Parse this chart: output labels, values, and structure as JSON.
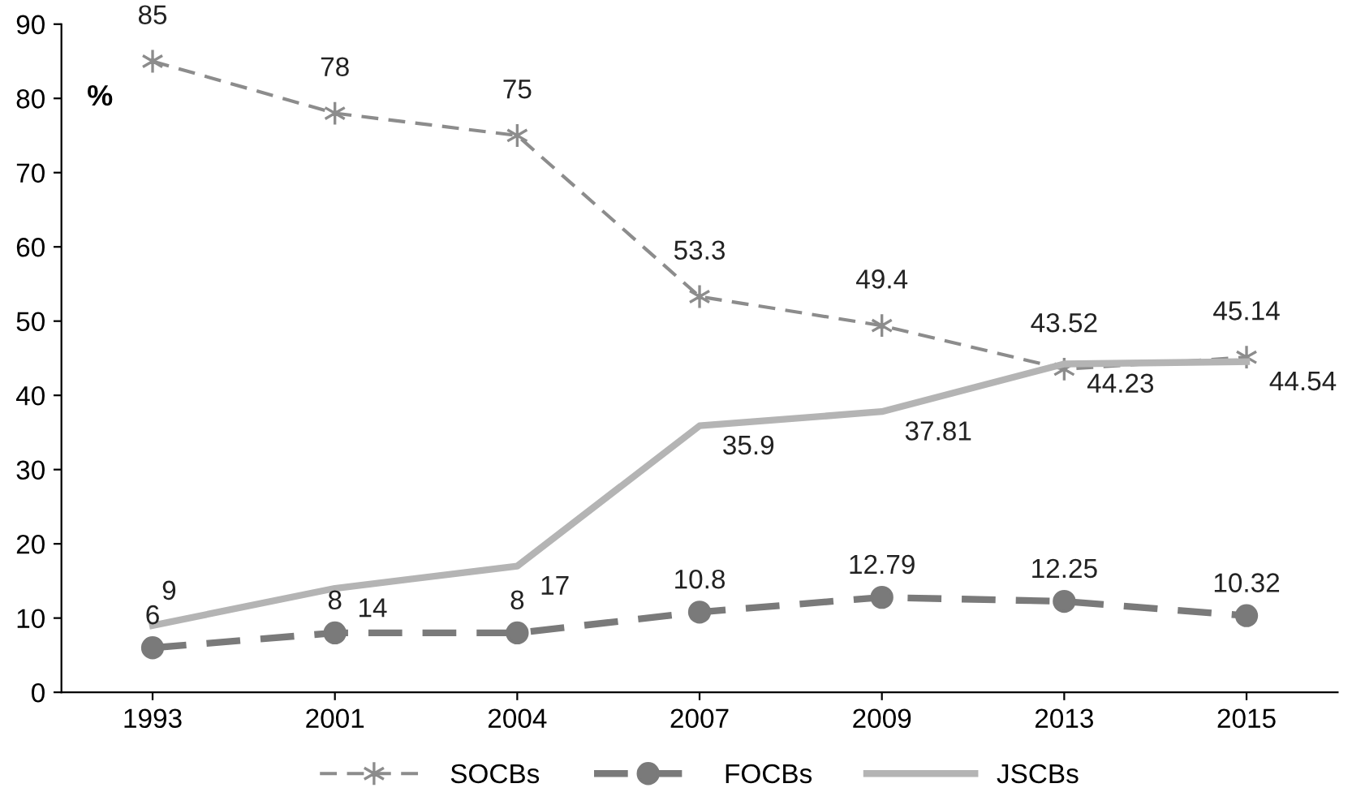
{
  "chart_data": {
    "type": "line",
    "ylabel": "%",
    "categories": [
      "1993",
      "2001",
      "2004",
      "2007",
      "2009",
      "2013",
      "2015"
    ],
    "series": [
      {
        "name": "SOCBs",
        "color": "#8c8c8c",
        "values": [
          85,
          78,
          75,
          53.3,
          49.4,
          43.52,
          45.14
        ],
        "line_style": "dashed",
        "marker": "cross"
      },
      {
        "name": "FOCBs",
        "color": "#7a7a7a",
        "values": [
          6,
          8,
          8,
          10.8,
          12.79,
          12.25,
          10.32
        ],
        "line_style": "dashed",
        "marker": "circle"
      },
      {
        "name": "JSCBs",
        "color": "#b4b4b4",
        "values": [
          9,
          14,
          17,
          35.9,
          37.81,
          44.23,
          44.54
        ],
        "line_style": "solid",
        "marker": "none"
      }
    ],
    "ylim": [
      0,
      90
    ],
    "yticks": [
      0,
      10,
      20,
      30,
      40,
      50,
      60,
      70,
      80,
      90
    ],
    "grid": false,
    "legend": "bottom",
    "data_labels": true
  }
}
